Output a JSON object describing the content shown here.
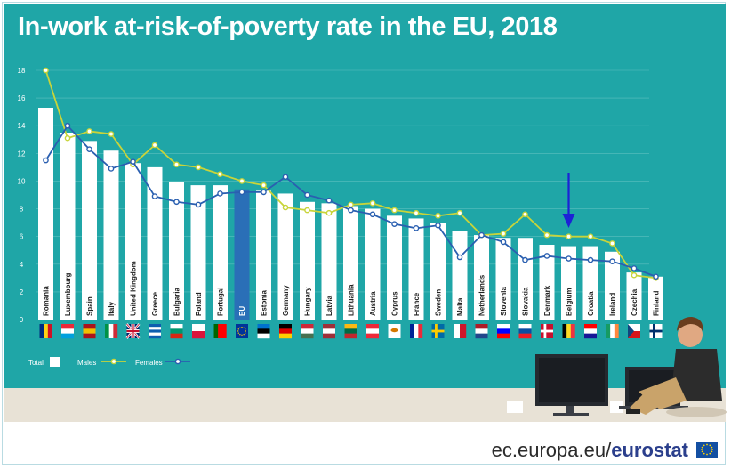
{
  "chart_data": {
    "type": "bar",
    "title": "In-work at-risk-of-poverty rate in the EU, 2018",
    "xlabel": "",
    "ylabel": "",
    "ylim": [
      0,
      18
    ],
    "yticks": [
      0,
      2,
      4,
      6,
      8,
      10,
      12,
      14,
      16,
      18
    ],
    "grid": true,
    "legend_position": "bottom-left",
    "categories": [
      "Romania",
      "Luxembourg",
      "Spain",
      "Italy",
      "United Kingdom",
      "Greece",
      "Bulgaria",
      "Poland",
      "Portugal",
      "EU",
      "Estonia",
      "Germany",
      "Hungary",
      "Latvia",
      "Lithuania",
      "Austria",
      "Cyprus",
      "France",
      "Sweden",
      "Malta",
      "Netherlands",
      "Slovenia",
      "Slovakia",
      "Denmark",
      "Belgium",
      "Croatia",
      "Ireland",
      "Czechia",
      "Finland"
    ],
    "highlight": "EU",
    "series": [
      {
        "name": "Total",
        "kind": "bar",
        "color": "#ffffff",
        "highlight_color": "#2a6fb7",
        "values": [
          15.3,
          13.5,
          12.9,
          12.2,
          11.3,
          11.0,
          9.9,
          9.7,
          9.7,
          9.4,
          9.3,
          9.1,
          8.5,
          8.4,
          8.2,
          8.0,
          7.5,
          7.3,
          7.0,
          6.4,
          6.1,
          5.9,
          5.9,
          5.4,
          5.3,
          5.3,
          4.9,
          3.4,
          3.1
        ]
      },
      {
        "name": "Males",
        "kind": "line",
        "color": "#c8d43a",
        "values": [
          18.0,
          13.1,
          13.6,
          13.4,
          11.2,
          12.6,
          11.2,
          11.0,
          10.5,
          10.0,
          9.7,
          8.1,
          7.9,
          7.7,
          8.3,
          8.4,
          7.9,
          7.7,
          7.5,
          7.7,
          6.1,
          6.2,
          7.6,
          6.1,
          6.0,
          6.0,
          5.5,
          3.2,
          3.0
        ]
      },
      {
        "name": "Females",
        "kind": "line",
        "color": "#2a5fb0",
        "values": [
          11.5,
          14.0,
          12.3,
          10.9,
          11.4,
          8.9,
          8.5,
          8.3,
          9.1,
          9.2,
          9.2,
          10.3,
          9.0,
          8.6,
          7.9,
          7.6,
          6.9,
          6.6,
          6.8,
          4.5,
          6.1,
          5.6,
          4.3,
          4.6,
          4.4,
          4.3,
          4.2,
          3.7,
          3.1
        ]
      }
    ]
  },
  "arrow_target": "Belgium",
  "flags": [
    {
      "country": "Romania",
      "type": "v",
      "colors": [
        "#002b7f",
        "#fcd116",
        "#ce1126"
      ]
    },
    {
      "country": "Luxembourg",
      "type": "h",
      "colors": [
        "#ed2939",
        "#ffffff",
        "#00a1de"
      ]
    },
    {
      "country": "Spain",
      "type": "h",
      "colors": [
        "#aa151b",
        "#f1bf00",
        "#aa151b"
      ]
    },
    {
      "country": "Italy",
      "type": "v",
      "colors": [
        "#009246",
        "#ffffff",
        "#ce2b37"
      ]
    },
    {
      "country": "United Kingdom",
      "type": "uk",
      "colors": [
        "#012169",
        "#ffffff",
        "#c8102e"
      ]
    },
    {
      "country": "Greece",
      "type": "h",
      "colors": [
        "#0d5eaf",
        "#ffffff",
        "#0d5eaf",
        "#ffffff",
        "#0d5eaf"
      ]
    },
    {
      "country": "Bulgaria",
      "type": "h",
      "colors": [
        "#ffffff",
        "#00966e",
        "#d62612"
      ]
    },
    {
      "country": "Poland",
      "type": "h",
      "colors": [
        "#ffffff",
        "#dc143c"
      ]
    },
    {
      "country": "Portugal",
      "type": "v",
      "colors": [
        "#006600",
        "#ff0000",
        "#ff0000"
      ]
    },
    {
      "country": "EU",
      "type": "eu",
      "colors": [
        "#003399",
        "#ffcc00"
      ]
    },
    {
      "country": "Estonia",
      "type": "h",
      "colors": [
        "#0072ce",
        "#000000",
        "#ffffff"
      ]
    },
    {
      "country": "Germany",
      "type": "h",
      "colors": [
        "#000000",
        "#dd0000",
        "#ffce00"
      ]
    },
    {
      "country": "Hungary",
      "type": "h",
      "colors": [
        "#ce2939",
        "#ffffff",
        "#477050"
      ]
    },
    {
      "country": "Latvia",
      "type": "h",
      "colors": [
        "#9e3039",
        "#ffffff",
        "#9e3039"
      ]
    },
    {
      "country": "Lithuania",
      "type": "h",
      "colors": [
        "#fdb913",
        "#006a44",
        "#c1272d"
      ]
    },
    {
      "country": "Austria",
      "type": "h",
      "colors": [
        "#ed2939",
        "#ffffff",
        "#ed2939"
      ]
    },
    {
      "country": "Cyprus",
      "type": "cy",
      "colors": [
        "#ffffff",
        "#d57800"
      ]
    },
    {
      "country": "France",
      "type": "v",
      "colors": [
        "#002395",
        "#ffffff",
        "#ed2939"
      ]
    },
    {
      "country": "Sweden",
      "type": "nordic",
      "colors": [
        "#006aa7",
        "#fecc00"
      ]
    },
    {
      "country": "Malta",
      "type": "v",
      "colors": [
        "#ffffff",
        "#cf142b"
      ]
    },
    {
      "country": "Netherlands",
      "type": "h",
      "colors": [
        "#ae1c28",
        "#ffffff",
        "#21468b"
      ]
    },
    {
      "country": "Slovenia",
      "type": "h",
      "colors": [
        "#ffffff",
        "#0000ff",
        "#ff0000"
      ]
    },
    {
      "country": "Slovakia",
      "type": "h",
      "colors": [
        "#ffffff",
        "#0b4ea2",
        "#ee1c25"
      ]
    },
    {
      "country": "Denmark",
      "type": "nordic",
      "colors": [
        "#c8102e",
        "#ffffff"
      ]
    },
    {
      "country": "Belgium",
      "type": "v",
      "colors": [
        "#000000",
        "#fdda24",
        "#ef3340"
      ]
    },
    {
      "country": "Croatia",
      "type": "h",
      "colors": [
        "#ff0000",
        "#ffffff",
        "#171796"
      ]
    },
    {
      "country": "Ireland",
      "type": "v",
      "colors": [
        "#169b62",
        "#ffffff",
        "#ff883e"
      ]
    },
    {
      "country": "Czechia",
      "type": "cz",
      "colors": [
        "#ffffff",
        "#d7141a",
        "#11457e"
      ]
    },
    {
      "country": "Finland",
      "type": "nordic",
      "colors": [
        "#ffffff",
        "#002f6c"
      ]
    }
  ],
  "footer": {
    "domain": "ec.europa.eu/",
    "brand": "eurostat"
  },
  "colors": {
    "background": "#1fa6a7",
    "text": "#ffffff",
    "gridline": "#5cbfbf"
  }
}
